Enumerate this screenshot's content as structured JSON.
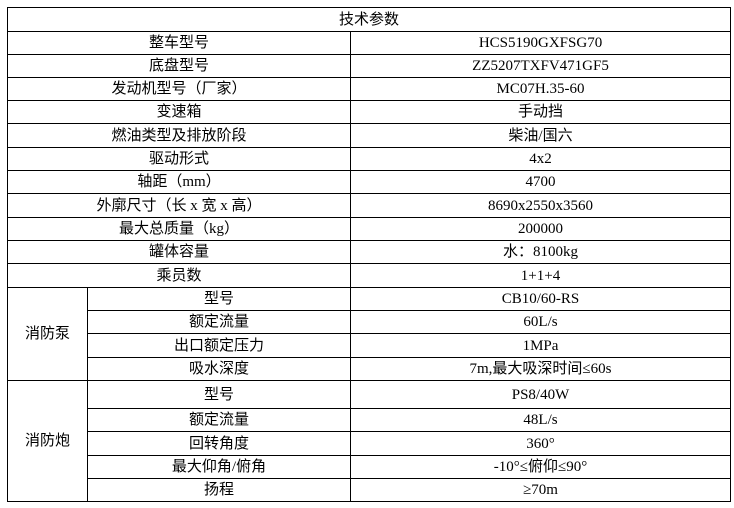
{
  "title": "技术参数",
  "general": [
    {
      "label": "整车型号",
      "value": "HCS5190GXFSG70"
    },
    {
      "label": "底盘型号",
      "value": "ZZ5207TXFV471GF5"
    },
    {
      "label": "发动机型号（厂家）",
      "value": "MC07H.35-60"
    },
    {
      "label": "变速箱",
      "value": "手动挡"
    },
    {
      "label": "燃油类型及排放阶段",
      "value": "柴油/国六"
    },
    {
      "label": "驱动形式",
      "value": "4x2"
    },
    {
      "label": "轴距（mm）",
      "value": "4700"
    },
    {
      "label": "外廓尺寸（长 x 宽 x 高）",
      "value": "8690x2550x3560"
    },
    {
      "label": "最大总质量（kg）",
      "value": "200000"
    },
    {
      "label": "罐体容量",
      "value": "水：8100kg"
    },
    {
      "label": "乘员数",
      "value": "1+1+4"
    }
  ],
  "pump": {
    "group": "消防泵",
    "rows": [
      {
        "label": "型号",
        "value": "CB10/60-RS"
      },
      {
        "label": "额定流量",
        "value": "60L/s"
      },
      {
        "label": "出口额定压力",
        "value": "1MPa"
      },
      {
        "label": "吸水深度",
        "value": "7m,最大吸深时间≤60s"
      }
    ]
  },
  "cannon": {
    "group": "消防炮",
    "rows": [
      {
        "label": "型号",
        "value": "PS8/40W"
      },
      {
        "label": "额定流量",
        "value": "48L/s"
      },
      {
        "label": "回转角度",
        "value": "360°"
      },
      {
        "label": "最大仰角/俯角",
        "value": "-10°≤俯仰≤90°"
      },
      {
        "label": "扬程",
        "value": "≥70m"
      }
    ]
  }
}
